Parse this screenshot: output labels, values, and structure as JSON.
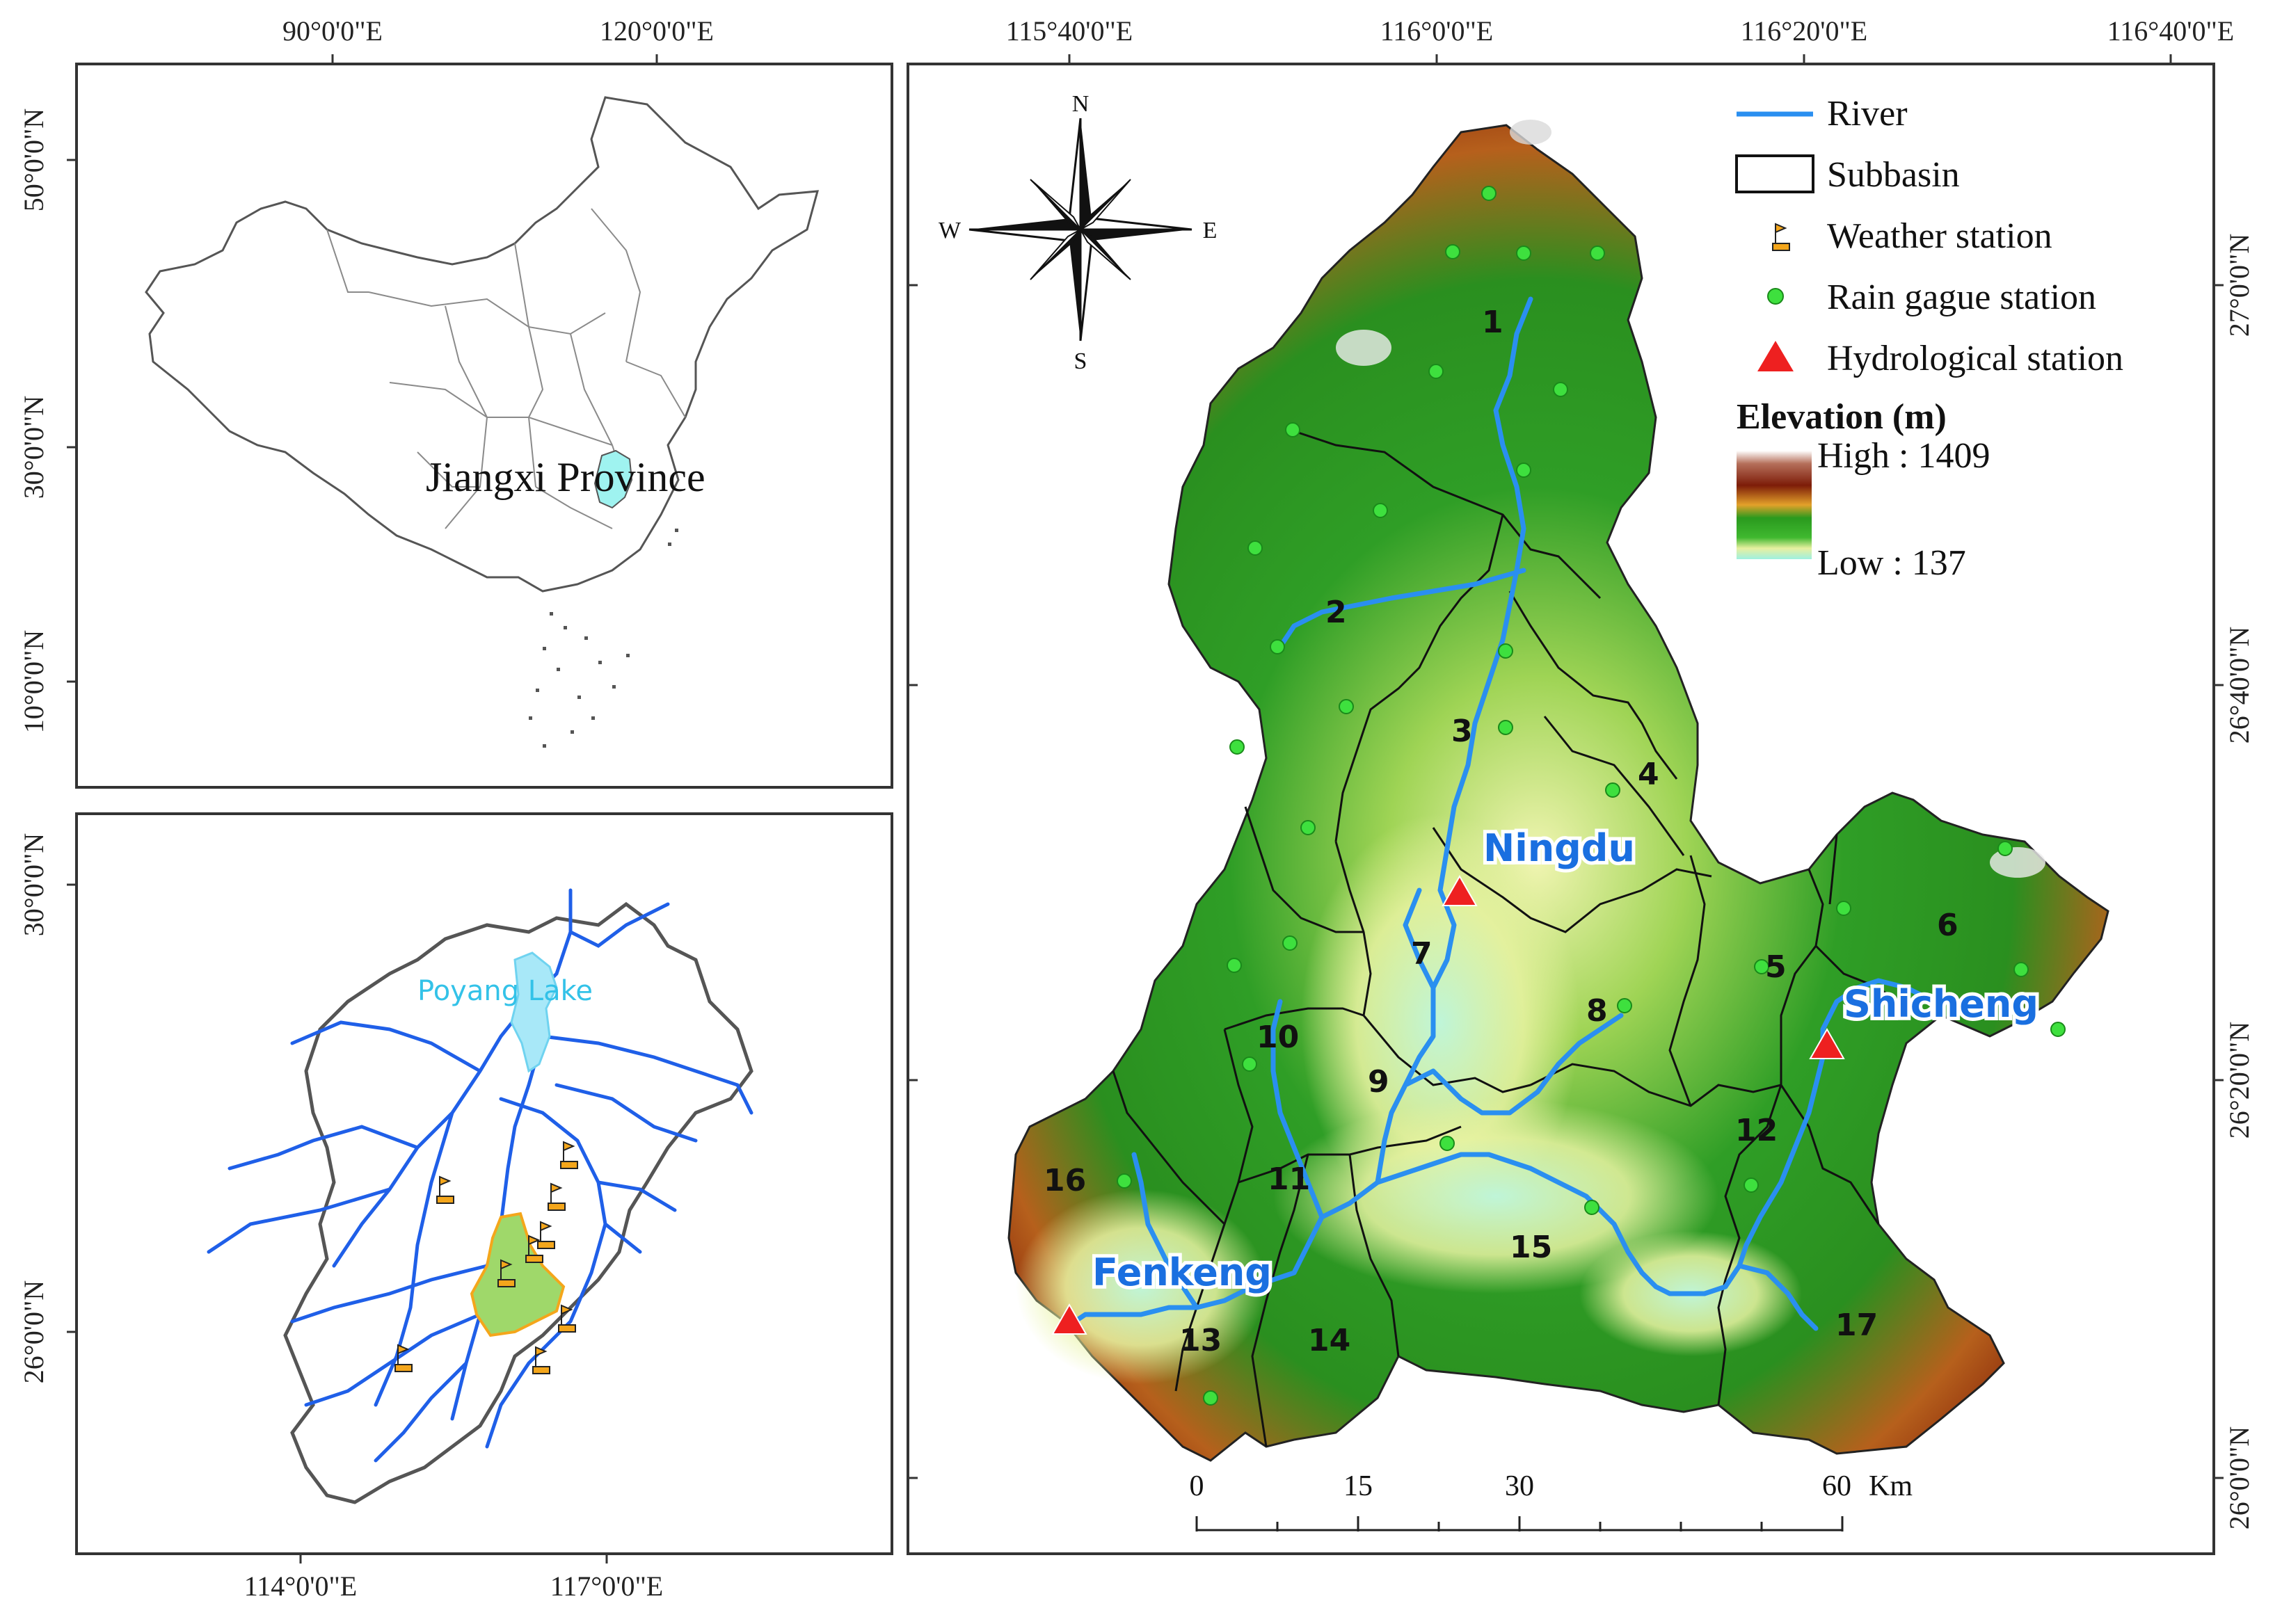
{
  "top_left_map": {
    "lon_labels": [
      "90°0'0\"E",
      "120°0'0\"E"
    ],
    "lat_labels": [
      "50°0'0\"N",
      "30°0'0\"N",
      "10°0'0\"N"
    ],
    "province_label": "Jiangxi Province",
    "highlight_color": "#9ff3f0"
  },
  "bottom_left_map": {
    "lon_labels": [
      "114°0'0\"E",
      "117°0'0\"E"
    ],
    "lat_labels": [
      "30°0'0\"N",
      "26°0'0\"N"
    ],
    "lake_label": "Poyang Lake",
    "river_color": "#1f5fe8",
    "basin_color": "#9fd86a",
    "weather_station_color": "#f4a61b"
  },
  "main_map": {
    "lon_labels": [
      "115°40'0\"E",
      "116°0'0\"E",
      "116°20'0\"E",
      "116°40'0\"E"
    ],
    "lat_labels": [
      "27°0'0\"N",
      "26°40'0\"N",
      "26°20'0\"N",
      "26°0'0\"N"
    ],
    "compass": {
      "n": "N",
      "s": "S",
      "e": "E",
      "w": "W"
    },
    "subbasins": [
      "1",
      "2",
      "3",
      "4",
      "5",
      "6",
      "7",
      "8",
      "9",
      "10",
      "11",
      "12",
      "13",
      "14",
      "15",
      "16",
      "17"
    ],
    "hydrological_stations": [
      "Ningdu",
      "Shicheng",
      "Fenkeng"
    ],
    "legend": {
      "river": "River",
      "subbasin": "Subbasin",
      "weather": "Weather station",
      "rain": "Rain gague station",
      "hydro": "Hydrological station",
      "elevation_title": "Elevation (m)",
      "high": "High : 1409",
      "low": "Low : 137"
    },
    "scale": {
      "labels": [
        "0",
        "15",
        "30",
        "60"
      ],
      "unit": "Km"
    },
    "colors": {
      "river": "#2a8ff0",
      "rain_station": "#3ee03e",
      "hydro_station": "#ee2020"
    }
  }
}
